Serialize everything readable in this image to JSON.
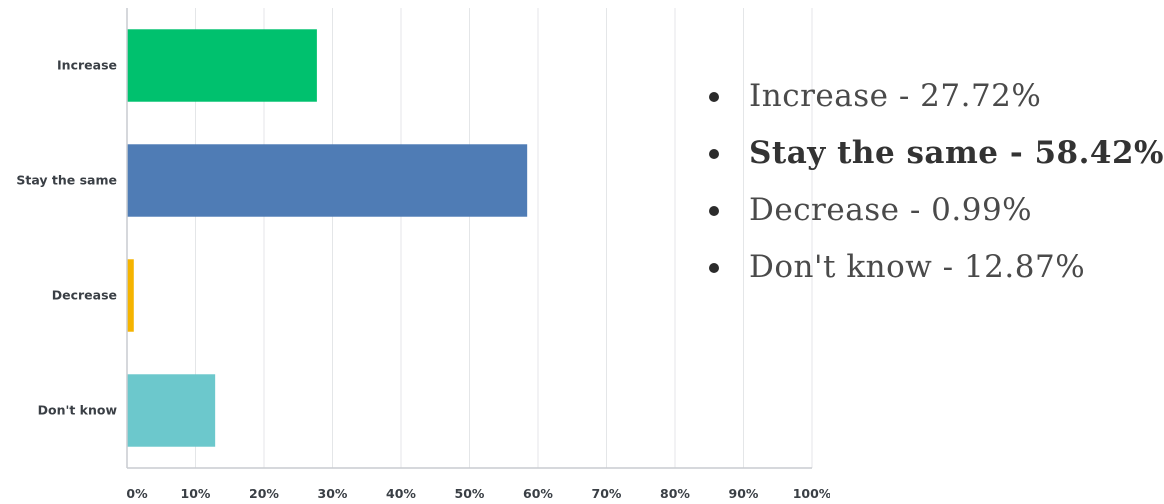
{
  "chart_data": {
    "type": "bar",
    "orientation": "horizontal",
    "categories": [
      "Increase",
      "Stay the same",
      "Decrease",
      "Don't know"
    ],
    "values": [
      27.72,
      58.42,
      0.99,
      12.87
    ],
    "colors": [
      "#00c16e",
      "#4f7cb5",
      "#f5b400",
      "#6cc8cc"
    ],
    "xlim": [
      0,
      100
    ],
    "xticks": [
      "0%",
      "10%",
      "20%",
      "30%",
      "40%",
      "50%",
      "60%",
      "70%",
      "80%",
      "90%",
      "100%"
    ],
    "grid": true,
    "title": "",
    "xlabel": "",
    "ylabel": ""
  },
  "summary_list": [
    {
      "text": "Increase - 27.72%",
      "bold": false
    },
    {
      "text": "Stay the same - 58.42%",
      "bold": true
    },
    {
      "text": "Decrease - 0.99%",
      "bold": false
    },
    {
      "text": "Don't know - 12.87%",
      "bold": false
    }
  ]
}
